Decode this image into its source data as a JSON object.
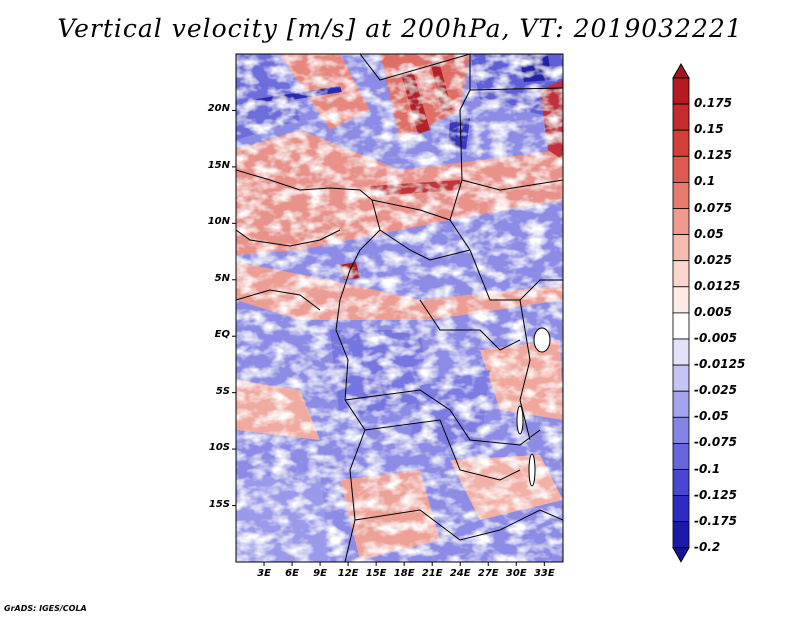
{
  "title": "Vertical velocity [m/s] at 200hPa, VT: 2019032221",
  "credit": "GrADS: IGES/COLA",
  "map": {
    "lon_range": [
      0,
      35
    ],
    "lat_range": [
      -20,
      25
    ],
    "lat_labels": [
      {
        "lat": 20,
        "text": "20N"
      },
      {
        "lat": 15,
        "text": "15N"
      },
      {
        "lat": 10,
        "text": "10N"
      },
      {
        "lat": 5,
        "text": "5N"
      },
      {
        "lat": 0,
        "text": "EQ"
      },
      {
        "lat": -5,
        "text": "5S"
      },
      {
        "lat": -10,
        "text": "10S"
      },
      {
        "lat": -15,
        "text": "15S"
      }
    ],
    "lon_labels": [
      {
        "lon": 3,
        "text": "3E"
      },
      {
        "lon": 6,
        "text": "6E"
      },
      {
        "lon": 9,
        "text": "9E"
      },
      {
        "lon": 12,
        "text": "12E"
      },
      {
        "lon": 15,
        "text": "15E"
      },
      {
        "lon": 18,
        "text": "18E"
      },
      {
        "lon": 21,
        "text": "21E"
      },
      {
        "lon": 24,
        "text": "24E"
      },
      {
        "lon": 27,
        "text": "27E"
      },
      {
        "lon": 30,
        "text": "30E"
      },
      {
        "lon": 33,
        "text": "33E"
      }
    ]
  },
  "colorbar": {
    "levels": [
      {
        "label": "0.175",
        "color": "#b51a20"
      },
      {
        "label": "0.15",
        "color": "#c52a2c"
      },
      {
        "label": "0.125",
        "color": "#d2403c"
      },
      {
        "label": "0.1",
        "color": "#df5a52"
      },
      {
        "label": "0.075",
        "color": "#e87a6e"
      },
      {
        "label": "0.05",
        "color": "#f09a8e"
      },
      {
        "label": "0.025",
        "color": "#f6baae"
      },
      {
        "label": "0.0125",
        "color": "#fad6cc"
      },
      {
        "label": "0.005",
        "color": "#fdece6"
      },
      {
        "label": "-0.005",
        "color": "#ffffff"
      },
      {
        "label": "-0.0125",
        "color": "#e2e2fb"
      },
      {
        "label": "-0.025",
        "color": "#c4c4f5"
      },
      {
        "label": "-0.05",
        "color": "#a4a4ee"
      },
      {
        "label": "-0.075",
        "color": "#8484e6"
      },
      {
        "label": "-0.1",
        "color": "#6565de"
      },
      {
        "label": "-0.125",
        "color": "#4747d2"
      },
      {
        "label": "-0.175",
        "color": "#2c2cc2"
      },
      {
        "label": "-0.2",
        "color": "#1a1aa8"
      }
    ],
    "top_cap_color": "#a71520",
    "bottom_cap_color": "#14149a"
  }
}
